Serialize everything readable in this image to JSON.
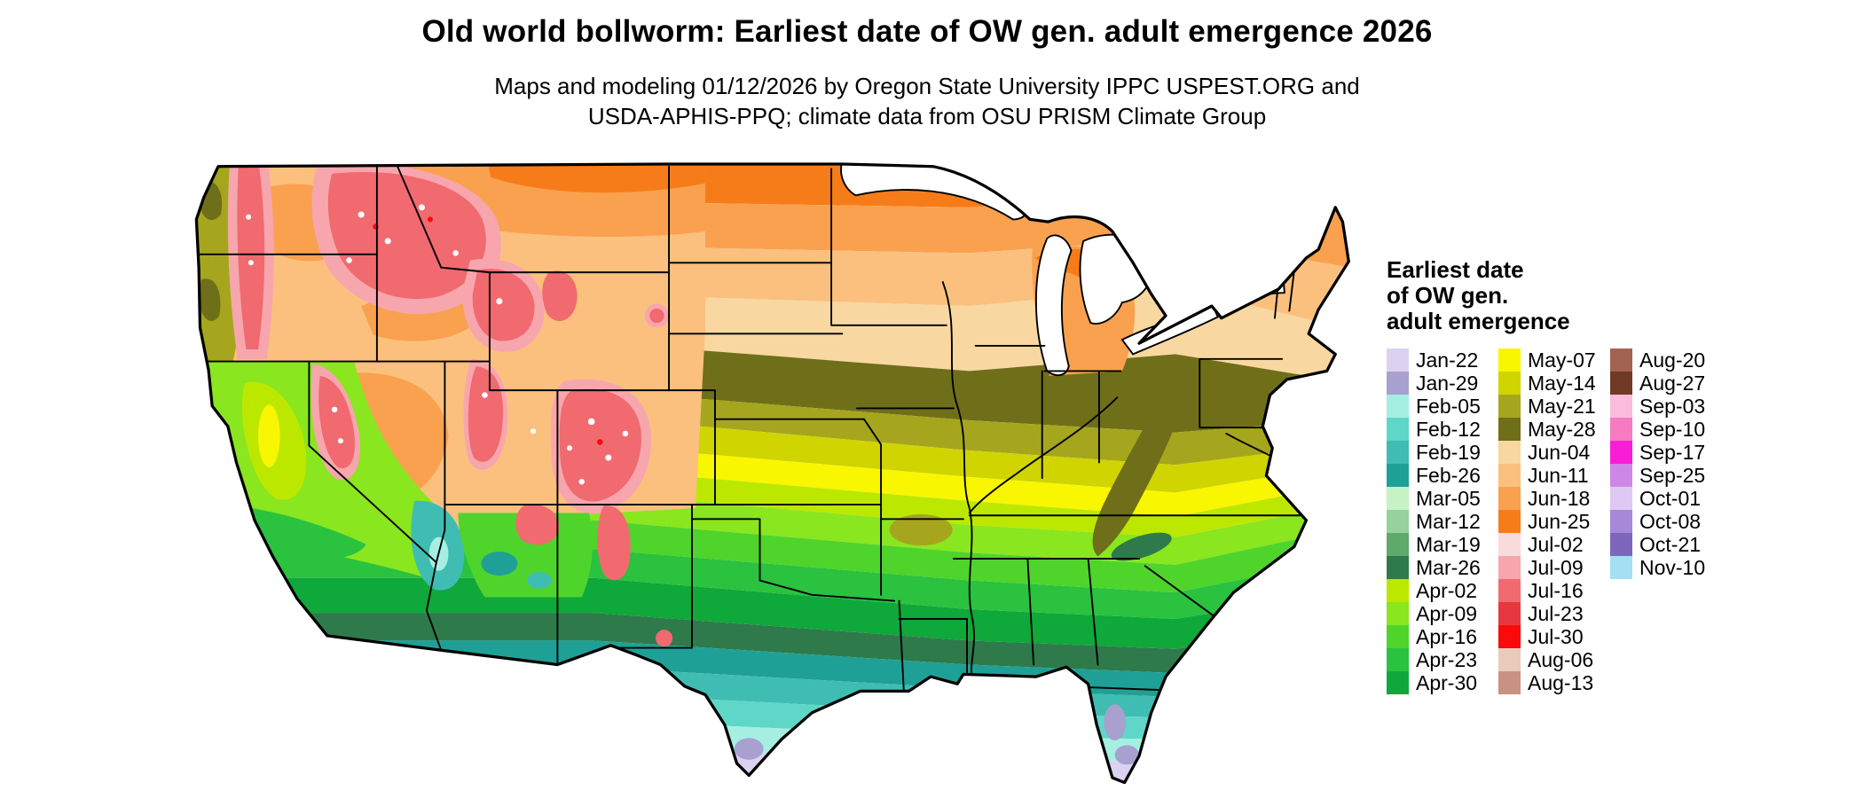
{
  "header": {
    "title": "Old world bollworm: Earliest date of OW gen. adult emergence 2026",
    "subtitle_line1": "Maps and modeling 01/12/2026 by Oregon State University IPPC USPEST.ORG and",
    "subtitle_line2": "USDA-APHIS-PPQ; climate data from OSU PRISM Climate Group"
  },
  "legend": {
    "title_lines": [
      "Earliest date",
      "of OW gen.",
      "adult emergence"
    ],
    "columns": [
      [
        {
          "label": "Jan-22",
          "color": "#dcd2f0"
        },
        {
          "label": "Jan-29",
          "color": "#a8a0ce"
        },
        {
          "label": "Feb-05",
          "color": "#a5efe2"
        },
        {
          "label": "Feb-12",
          "color": "#5fd6c8"
        },
        {
          "label": "Feb-19",
          "color": "#3fbdb2"
        },
        {
          "label": "Feb-26",
          "color": "#1fa096"
        },
        {
          "label": "Mar-05",
          "color": "#c6f3c6"
        },
        {
          "label": "Mar-12",
          "color": "#96d29c"
        },
        {
          "label": "Mar-19",
          "color": "#5fa96b"
        },
        {
          "label": "Mar-26",
          "color": "#2e7a4a"
        },
        {
          "label": "Apr-02",
          "color": "#bce800"
        },
        {
          "label": "Apr-09",
          "color": "#8ae61e"
        },
        {
          "label": "Apr-16",
          "color": "#4fd42b"
        },
        {
          "label": "Apr-23",
          "color": "#2ac23f"
        },
        {
          "label": "Apr-30",
          "color": "#0fa83a"
        }
      ],
      [
        {
          "label": "May-07",
          "color": "#f8f600"
        },
        {
          "label": "May-14",
          "color": "#d0d400"
        },
        {
          "label": "May-21",
          "color": "#a6a61e"
        },
        {
          "label": "May-28",
          "color": "#6f6f1a"
        },
        {
          "label": "Jun-04",
          "color": "#f8d8a0"
        },
        {
          "label": "Jun-11",
          "color": "#fbc07e"
        },
        {
          "label": "Jun-18",
          "color": "#f9a14f"
        },
        {
          "label": "Jun-25",
          "color": "#f67c19"
        },
        {
          "label": "Jul-02",
          "color": "#f9dbdb"
        },
        {
          "label": "Jul-09",
          "color": "#f7a6ad"
        },
        {
          "label": "Jul-16",
          "color": "#f06a70"
        },
        {
          "label": "Jul-23",
          "color": "#e8383f"
        },
        {
          "label": "Jul-30",
          "color": "#fa0a0a"
        },
        {
          "label": "Aug-06",
          "color": "#e9cbbb"
        },
        {
          "label": "Aug-13",
          "color": "#c99181"
        }
      ],
      [
        {
          "label": "Aug-20",
          "color": "#a26353"
        },
        {
          "label": "Aug-27",
          "color": "#6e3a26"
        },
        {
          "label": "Sep-03",
          "color": "#f9bcdc"
        },
        {
          "label": "Sep-10",
          "color": "#f77ac2"
        },
        {
          "label": "Sep-17",
          "color": "#f91ed6"
        },
        {
          "label": "Sep-25",
          "color": "#cd87e6"
        },
        {
          "label": "Oct-01",
          "color": "#dec9f5"
        },
        {
          "label": "Oct-08",
          "color": "#a788d6"
        },
        {
          "label": "Oct-21",
          "color": "#7e66bb"
        },
        {
          "label": "Nov-10",
          "color": "#a5e0f2"
        }
      ]
    ]
  },
  "map": {
    "region": "Continental United States",
    "description": "Raster map of earliest date of OW generation adult emergence, colored by weekly date class"
  }
}
